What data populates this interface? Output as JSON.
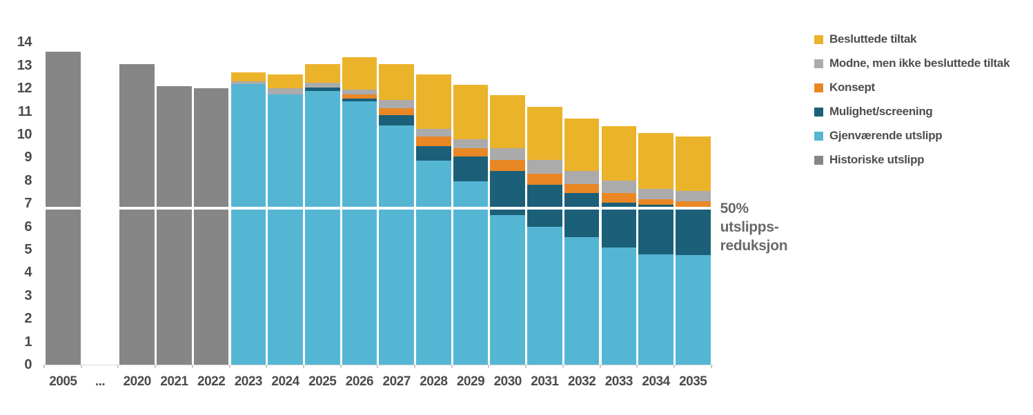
{
  "chart_data": {
    "type": "bar",
    "variant": "stacked",
    "title": "",
    "xlabel": "",
    "ylabel": "",
    "ylim": [
      0,
      14
    ],
    "yticks": [
      0,
      1,
      2,
      3,
      4,
      5,
      6,
      7,
      8,
      9,
      10,
      11,
      12,
      13,
      14
    ],
    "grid": false,
    "legend_position": "top-right",
    "categories": [
      "2005",
      "...",
      "2020",
      "2021",
      "2022",
      "2023",
      "2024",
      "2025",
      "2026",
      "2027",
      "2028",
      "2029",
      "2030",
      "2031",
      "2032",
      "2033",
      "2034",
      "2035"
    ],
    "series": [
      {
        "name": "Historiske utslipp",
        "color": "#868686",
        "values": [
          13.6,
          0,
          13.05,
          12.1,
          12.0,
          0,
          0,
          0,
          0,
          0,
          0,
          0,
          0,
          0,
          0,
          0,
          0,
          0
        ]
      },
      {
        "name": "Gjenværende utslipp",
        "color": "#55B6D4",
        "values": [
          0,
          0,
          0,
          0,
          0,
          12.2,
          11.75,
          11.9,
          11.45,
          10.4,
          8.85,
          7.95,
          6.5,
          6.0,
          5.55,
          5.1,
          4.8,
          4.75
        ]
      },
      {
        "name": "Mulighet/screening",
        "color": "#1C5F78",
        "values": [
          0,
          0,
          0,
          0,
          0,
          0,
          0,
          0.15,
          0.1,
          0.45,
          0.65,
          1.1,
          1.9,
          1.8,
          1.9,
          1.95,
          2.15,
          2.1
        ]
      },
      {
        "name": "Konsept",
        "color": "#E98725",
        "values": [
          0,
          0,
          0,
          0,
          0,
          0,
          0,
          0,
          0.2,
          0.3,
          0.4,
          0.35,
          0.5,
          0.5,
          0.4,
          0.4,
          0.25,
          0.25
        ]
      },
      {
        "name": "Modne, men ikke besluttede tiltak",
        "color": "#ABABAB",
        "values": [
          0,
          0,
          0,
          0,
          0,
          0.1,
          0.25,
          0.2,
          0.2,
          0.35,
          0.35,
          0.4,
          0.5,
          0.6,
          0.55,
          0.55,
          0.45,
          0.45
        ]
      },
      {
        "name": "Besluttede tiltak",
        "color": "#EBB32A",
        "values": [
          0,
          0,
          0,
          0,
          0,
          0.4,
          0.6,
          0.8,
          1.4,
          1.55,
          2.35,
          2.35,
          2.3,
          2.3,
          2.3,
          2.35,
          2.4,
          2.35
        ]
      }
    ],
    "totals": [
      13.6,
      null,
      13.05,
      12.1,
      12.0,
      12.7,
      12.6,
      13.05,
      13.35,
      13.05,
      12.6,
      12.15,
      11.7,
      11.2,
      10.7,
      10.35,
      10.05,
      9.9
    ],
    "reference_line": {
      "value": 6.8,
      "label": "50% utslipps-reduksjon",
      "color": "#ffffff"
    }
  },
  "legend": {
    "items": [
      {
        "label": "Besluttede tiltak",
        "color": "#EBB32A"
      },
      {
        "label": "Modne, men ikke besluttede tiltak",
        "color": "#ABABAB"
      },
      {
        "label": "Konsept",
        "color": "#E98725"
      },
      {
        "label": "Mulighet/screening",
        "color": "#1C5F78"
      },
      {
        "label": "Gjenværende utslipp",
        "color": "#55B6D4"
      },
      {
        "label": "Historiske utslipp",
        "color": "#868686"
      }
    ]
  },
  "annotation": {
    "line1": "50%",
    "line2": "utslipps-",
    "line3": "reduksjon"
  }
}
